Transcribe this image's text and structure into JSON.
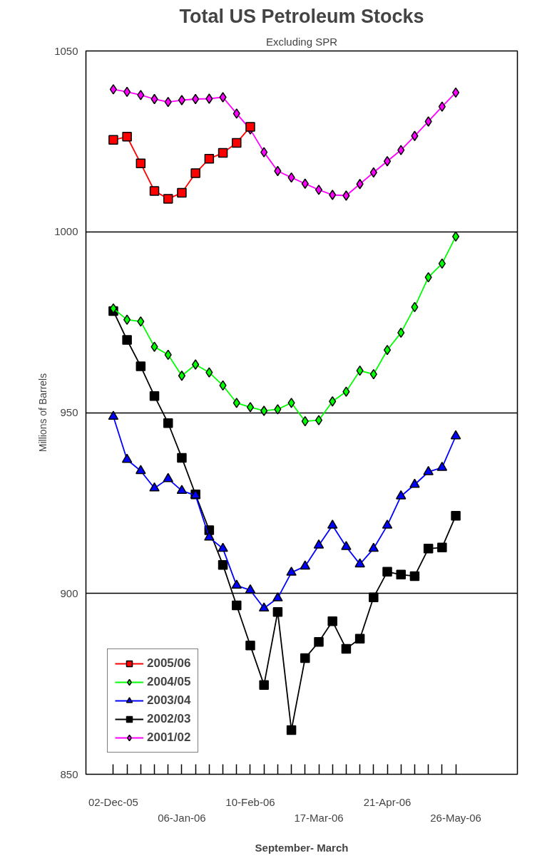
{
  "chart_data": {
    "type": "line",
    "title": "Total US Petroleum Stocks",
    "subtitle": "Excluding SPR",
    "xlabel": "September- March",
    "ylabel": "Millions of Barrels",
    "categories": [
      "02-Dec-05",
      null,
      null,
      null,
      null,
      "06-Jan-06",
      null,
      null,
      null,
      null,
      "10-Feb-06",
      null,
      null,
      null,
      null,
      "17-Mar-06",
      null,
      null,
      null,
      null,
      "21-Apr-06",
      null,
      null,
      null,
      null,
      "26-May-06"
    ],
    "ylim": [
      850,
      1050
    ],
    "yticks": [
      850,
      900,
      950,
      1000,
      1050
    ],
    "grid": "y",
    "legend": "bottom left",
    "series": [
      {
        "name": "2005/06",
        "color": "#ff0000",
        "marker": "square",
        "values": [
          1025.4,
          1026.3,
          1018.9,
          1011.3,
          1009.1,
          1010.8,
          1016.2,
          1020.2,
          1021.8,
          1024.6,
          1029.0,
          null,
          null,
          null,
          null,
          null,
          null,
          null,
          null,
          null,
          null,
          null,
          null,
          null,
          null,
          null
        ]
      },
      {
        "name": "2004/05",
        "color": "#00ff00",
        "marker": "diamond",
        "values": [
          978.8,
          975.7,
          975.2,
          968.2,
          966.0,
          960.2,
          963.3,
          961.1,
          957.5,
          952.7,
          951.5,
          950.5,
          950.9,
          952.7,
          947.6,
          947.9,
          953.1,
          955.8,
          961.6,
          960.6,
          967.3,
          972.1,
          979.2,
          987.4,
          991.2,
          998.7
        ]
      },
      {
        "name": "2003/04",
        "color": "#0000ff",
        "marker": "triangle",
        "values": [
          948.9,
          937.0,
          933.9,
          929.1,
          931.7,
          928.4,
          927.1,
          915.5,
          912.4,
          902.2,
          900.9,
          895.9,
          898.7,
          905.8,
          907.5,
          913.3,
          918.8,
          912.9,
          908.1,
          912.4,
          918.8,
          926.9,
          930.1,
          933.6,
          934.8,
          943.5
        ]
      },
      {
        "name": "2002/03",
        "color": "#000000",
        "marker": "square",
        "values": [
          978.1,
          970.1,
          962.8,
          954.6,
          947.1,
          937.5,
          927.4,
          917.5,
          907.9,
          896.7,
          885.6,
          874.7,
          894.9,
          862.2,
          882.1,
          886.6,
          892.3,
          884.7,
          887.5,
          898.9,
          906.0,
          905.2,
          904.8,
          912.4,
          912.7,
          921.5
        ]
      },
      {
        "name": "2001/02",
        "color": "#ff00ff",
        "marker": "diamond",
        "values": [
          1039.4,
          1038.7,
          1037.8,
          1036.7,
          1035.9,
          1036.4,
          1036.7,
          1036.8,
          1037.2,
          1032.7,
          1028.3,
          1022.0,
          1016.8,
          1015.0,
          1013.3,
          1011.6,
          1010.2,
          1010.0,
          1013.2,
          1016.4,
          1019.5,
          1022.6,
          1026.5,
          1030.5,
          1034.6,
          1038.5
        ]
      }
    ]
  }
}
